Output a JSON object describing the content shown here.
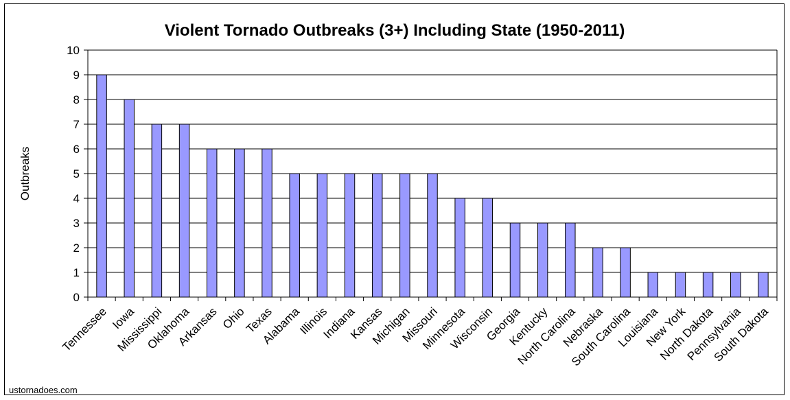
{
  "chart_data": {
    "type": "bar",
    "title": "Violent Tornado Outbreaks (3+) Including State (1950-2011)",
    "xlabel": "",
    "ylabel": "Outbreaks",
    "ylim": [
      0,
      10
    ],
    "yticks": [
      0,
      1,
      2,
      3,
      4,
      5,
      6,
      7,
      8,
      9,
      10
    ],
    "grid": true,
    "legend": "none",
    "categories": [
      "Tennessee",
      "Iowa",
      "Mississippi",
      "Oklahoma",
      "Arkansas",
      "Ohio",
      "Texas",
      "Alabama",
      "Illinois",
      "Indiana",
      "Kansas",
      "Michigan",
      "Missouri",
      "Minnesota",
      "Wisconsin",
      "Georgia",
      "Kentucky",
      "North Carolina",
      "Nebraska",
      "South Carolina",
      "Louisiana",
      "New York",
      "North Dakota",
      "Pennsylvania",
      "South Dakota"
    ],
    "values": [
      9,
      8,
      7,
      7,
      6,
      6,
      6,
      5,
      5,
      5,
      5,
      5,
      5,
      4,
      4,
      3,
      3,
      3,
      2,
      2,
      1,
      1,
      1,
      1,
      1
    ],
    "bar_color": "#9999ff",
    "bar_stroke": "#000000",
    "grid_color": "#000000"
  },
  "source": "ustornadoes.com"
}
